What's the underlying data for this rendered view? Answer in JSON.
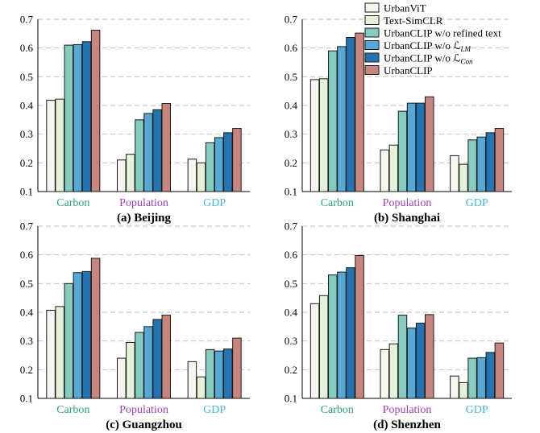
{
  "chart_data": {
    "type": "bar",
    "ylim": [
      0.1,
      0.7
    ],
    "yticks": [
      "0.1",
      "0.2",
      "0.3",
      "0.4",
      "0.5",
      "0.6",
      "0.7"
    ],
    "grid": "y-dashed",
    "legend_position": "top-right",
    "category_colors": [
      "#2e9e7a",
      "#9b3fb8",
      "#45b7d6"
    ],
    "series": [
      {
        "name": "UrbanViT",
        "color": "#f6f6ee"
      },
      {
        "name": "Text-SimCLR",
        "color": "#e3f2d9"
      },
      {
        "name": "UrbanCLIP w/o refined text",
        "color": "#86cbbf"
      },
      {
        "name": "UrbanCLIP w/o ℒLM",
        "color": "#57a8d4"
      },
      {
        "name": "UrbanCLIP w/o ℒCon",
        "color": "#2574b2"
      },
      {
        "name": "UrbanCLIP",
        "color": "#c8857e"
      }
    ],
    "panels": [
      {
        "title": "(a) Beijing",
        "categories": [
          "Carbon",
          "Population",
          "GDP"
        ],
        "values": [
          [
            0.418,
            0.422,
            0.61,
            0.612,
            0.622,
            0.662
          ],
          [
            0.21,
            0.23,
            0.35,
            0.372,
            0.385,
            0.407
          ],
          [
            0.213,
            0.2,
            0.27,
            0.288,
            0.305,
            0.32
          ]
        ]
      },
      {
        "title": "(b) Shanghai",
        "categories": [
          "Carbon",
          "Population",
          "GDP"
        ],
        "values": [
          [
            0.49,
            0.493,
            0.59,
            0.605,
            0.637,
            0.652
          ],
          [
            0.245,
            0.262,
            0.38,
            0.408,
            0.408,
            0.43
          ],
          [
            0.225,
            0.195,
            0.28,
            0.29,
            0.305,
            0.32
          ]
        ]
      },
      {
        "title": "(c) Guangzhou",
        "categories": [
          "Carbon",
          "Population",
          "GDP"
        ],
        "values": [
          [
            0.407,
            0.42,
            0.5,
            0.538,
            0.542,
            0.588
          ],
          [
            0.24,
            0.295,
            0.33,
            0.35,
            0.375,
            0.39
          ],
          [
            0.228,
            0.175,
            0.27,
            0.265,
            0.272,
            0.31
          ]
        ]
      },
      {
        "title": "(d) Shenzhen",
        "categories": [
          "Carbon",
          "Population",
          "GDP"
        ],
        "values": [
          [
            0.43,
            0.458,
            0.53,
            0.54,
            0.555,
            0.598
          ],
          [
            0.27,
            0.29,
            0.39,
            0.345,
            0.362,
            0.392
          ],
          [
            0.178,
            0.155,
            0.24,
            0.242,
            0.26,
            0.293
          ]
        ]
      }
    ]
  }
}
